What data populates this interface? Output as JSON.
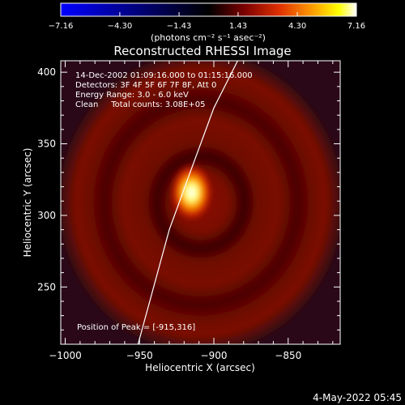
{
  "chart_data": {
    "type": "heatmap",
    "title": "Reconstructed RHESSI Image",
    "xlabel": "Heliocentric X (arcsec)",
    "ylabel": "Heliocentric Y (arcsec)",
    "xlim": [
      -1002,
      -957.5
    ],
    "ylim": [
      210,
      408
    ],
    "x_range": [
      -1002,
      -957.5
    ],
    "xlim_note_unused": null,
    "x_axis": {
      "min": -1003,
      "max": -815
    },
    "y_axis": {
      "min": 210,
      "max": 408
    },
    "x_ticks": [
      -1000,
      -950,
      -900,
      -850
    ],
    "x_tick_labels": [
      "−1000",
      "−950",
      "−900",
      "−850"
    ],
    "y_ticks": [
      250,
      300,
      350,
      400
    ],
    "y_tick_labels": [
      "250",
      "300",
      "350",
      "400"
    ],
    "colorbar": {
      "label": "(photons cm⁻² s⁻¹ asec⁻²)",
      "min": -7.16,
      "max": 7.16,
      "ticks": [
        -7.16,
        -4.3,
        -1.43,
        1.43,
        4.3,
        7.16
      ],
      "tick_labels": [
        "−7.16",
        "−4.30",
        "−1.43",
        "1.43",
        "4.30",
        "7.16"
      ],
      "colormap": [
        "#0000ff",
        "#000000",
        "#7a0000",
        "#e03000",
        "#ffa500",
        "#ffff00",
        "#ffffff"
      ]
    },
    "annotations": [
      "14-Dec-2002 01:09:16.000 to 01:15:16.000",
      "Detectors: 3F 4F 5F 6F 7F 8F, Att 0",
      "Energy Range: 3.0 - 6.0 keV",
      "Clean     Total counts: 3.08E+05"
    ],
    "peak_label": "Position of Peak = [-915,316]",
    "peak": {
      "x": -915,
      "y": 316
    },
    "limb_line": [
      [
        -951,
        210
      ],
      [
        -930,
        290
      ],
      [
        -916,
        330
      ],
      [
        -900,
        375
      ],
      [
        -884,
        408
      ]
    ],
    "grid": false
  },
  "footer": {
    "date": "4-May-2022 05:45"
  }
}
